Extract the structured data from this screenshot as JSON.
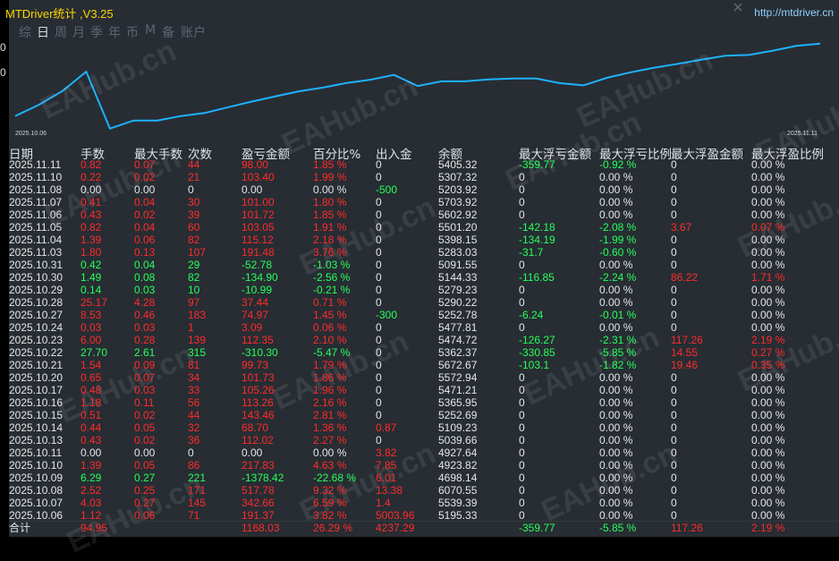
{
  "window": {
    "title": "MTDriver统计 ,V3.25",
    "url": "http://mtdriver.cn"
  },
  "tabs": [
    {
      "label": "综",
      "active": false
    },
    {
      "label": "日",
      "active": true
    },
    {
      "label": "周",
      "active": false
    },
    {
      "label": "月",
      "active": false
    },
    {
      "label": "季",
      "active": false
    },
    {
      "label": "年",
      "active": false
    },
    {
      "label": "币",
      "active": false
    },
    {
      "label": "M",
      "active": false
    },
    {
      "label": "备",
      "active": false
    },
    {
      "label": "账户",
      "active": false
    }
  ],
  "left_axis_ticks": [
    "0",
    "0"
  ],
  "chart_data": {
    "type": "line",
    "x_start_label": "2025.10.06",
    "x_end_label": "2025.11.11",
    "color": "#1eb2ff",
    "points": [
      4400,
      4960,
      5640,
      6600,
      3780,
      4180,
      4180,
      4400,
      4550,
      4840,
      5120,
      5380,
      5630,
      5810,
      6040,
      6200,
      6440,
      5890,
      6120,
      6120,
      6220,
      6260,
      6260,
      6030,
      5920,
      6300,
      6570,
      6800,
      6990,
      7200,
      7390,
      7430,
      7640,
      7880,
      7990
    ]
  },
  "watermark": "EAHub.cn",
  "headers": [
    "日期",
    "手数",
    "最大手数",
    "次数",
    "盈亏金额",
    "百分比%",
    "出入金",
    "余额",
    "最大浮亏金额",
    "最大浮亏比例",
    "最大浮盈金额",
    "最大浮盈比例"
  ],
  "colors": {
    "red": "#ff2b2b",
    "green": "#26ff5c",
    "white": "#e6e6e6",
    "title": "#ffd400"
  },
  "rows": [
    [
      "2025.11.11",
      "0.82",
      "0.07",
      "44",
      "98.00",
      "1.85 %",
      "0",
      "5405.32",
      "-359.77",
      "-0.92 %",
      "0",
      "0.00 %"
    ],
    [
      "2025.11.10",
      "0.22",
      "0.02",
      "21",
      "103.40",
      "1.99 %",
      "0",
      "5307.32",
      "0",
      "0.00 %",
      "0",
      "0.00 %"
    ],
    [
      "2025.11.08",
      "0.00",
      "0.00",
      "0",
      "0.00",
      "0.00 %",
      "-500",
      "5203.92",
      "0",
      "0.00 %",
      "0",
      "0.00 %"
    ],
    [
      "2025.11.07",
      "0.41",
      "0.04",
      "30",
      "101.00",
      "1.80 %",
      "0",
      "5703.92",
      "0",
      "0.00 %",
      "0",
      "0.00 %"
    ],
    [
      "2025.11.06",
      "0.43",
      "0.02",
      "39",
      "101.72",
      "1.85 %",
      "0",
      "5602.92",
      "0",
      "0.00 %",
      "0",
      "0.00 %"
    ],
    [
      "2025.11.05",
      "0.82",
      "0.04",
      "60",
      "103.05",
      "1.91 %",
      "0",
      "5501.20",
      "-142.18",
      "-2.08 %",
      "3.67",
      "0.07 %"
    ],
    [
      "2025.11.04",
      "1.39",
      "0.06",
      "82",
      "115.12",
      "2.18 %",
      "0",
      "5398.15",
      "-134.19",
      "-1.99 %",
      "0",
      "0.00 %"
    ],
    [
      "2025.11.03",
      "1.80",
      "0.13",
      "107",
      "191.48",
      "3.76 %",
      "0",
      "5283.03",
      "-31.7",
      "-0.60 %",
      "0",
      "0.00 %"
    ],
    [
      "2025.10.31",
      "0.42",
      "0.04",
      "29",
      "-52.78",
      "-1.03 %",
      "0",
      "5091.55",
      "0",
      "0.00 %",
      "0",
      "0.00 %"
    ],
    [
      "2025.10.30",
      "1.49",
      "0.08",
      "82",
      "-134.90",
      "-2.56 %",
      "0",
      "5144.33",
      "-116.85",
      "-2.24 %",
      "86.22",
      "1.71 %"
    ],
    [
      "2025.10.29",
      "0.14",
      "0.03",
      "10",
      "-10.99",
      "-0.21 %",
      "0",
      "5279.23",
      "0",
      "0.00 %",
      "0",
      "0.00 %"
    ],
    [
      "2025.10.28",
      "25.17",
      "4.28",
      "97",
      "37.44",
      "0.71 %",
      "0",
      "5290.22",
      "0",
      "0.00 %",
      "0",
      "0.00 %"
    ],
    [
      "2025.10.27",
      "8.53",
      "0.46",
      "183",
      "74.97",
      "1.45 %",
      "-300",
      "5252.78",
      "-6.24",
      "-0.01 %",
      "0",
      "0.00 %"
    ],
    [
      "2025.10.24",
      "0.03",
      "0.03",
      "1",
      "3.09",
      "0.06 %",
      "0",
      "5477.81",
      "0",
      "0.00 %",
      "0",
      "0.00 %"
    ],
    [
      "2025.10.23",
      "6.00",
      "0.28",
      "139",
      "112.35",
      "2.10 %",
      "0",
      "5474.72",
      "-126.27",
      "-2.31 %",
      "117.26",
      "2.19 %"
    ],
    [
      "2025.10.22",
      "27.70",
      "2.61",
      "315",
      "-310.30",
      "-5.47 %",
      "0",
      "5362.37",
      "-330.85",
      "-5.85 %",
      "14.55",
      "0.27 %"
    ],
    [
      "2025.10.21",
      "1.54",
      "0.09",
      "81",
      "99.73",
      "1.79 %",
      "0",
      "5672.67",
      "-103.1",
      "-1.82 %",
      "19.46",
      "0.35 %"
    ],
    [
      "2025.10.20",
      "0.65",
      "0.07",
      "34",
      "101.73",
      "1.86 %",
      "0",
      "5572.94",
      "0",
      "0.00 %",
      "0",
      "0.00 %"
    ],
    [
      "2025.10.17",
      "0.48",
      "0.03",
      "33",
      "105.26",
      "1.96 %",
      "0",
      "5471.21",
      "0",
      "0.00 %",
      "0",
      "0.00 %"
    ],
    [
      "2025.10.16",
      "1.18",
      "0.11",
      "56",
      "113.26",
      "2.16 %",
      "0",
      "5365.95",
      "0",
      "0.00 %",
      "0",
      "0.00 %"
    ],
    [
      "2025.10.15",
      "0.51",
      "0.02",
      "44",
      "143.46",
      "2.81 %",
      "0",
      "5252.69",
      "0",
      "0.00 %",
      "0",
      "0.00 %"
    ],
    [
      "2025.10.14",
      "0.44",
      "0.05",
      "32",
      "68.70",
      "1.36 %",
      "0.87",
      "5109.23",
      "0",
      "0.00 %",
      "0",
      "0.00 %"
    ],
    [
      "2025.10.13",
      "0.43",
      "0.02",
      "36",
      "112.02",
      "2.27 %",
      "0",
      "5039.66",
      "0",
      "0.00 %",
      "0",
      "0.00 %"
    ],
    [
      "2025.10.11",
      "0.00",
      "0.00",
      "0",
      "0.00",
      "0.00 %",
      "3.82",
      "4927.64",
      "0",
      "0.00 %",
      "0",
      "0.00 %"
    ],
    [
      "2025.10.10",
      "1.39",
      "0.05",
      "86",
      "217.83",
      "4.63 %",
      "7.85",
      "4923.82",
      "0",
      "0.00 %",
      "0",
      "0.00 %"
    ],
    [
      "2025.10.09",
      "6.29",
      "0.27",
      "221",
      "-1378.42",
      "-22.68 %",
      "6.01",
      "4698.14",
      "0",
      "0.00 %",
      "0",
      "0.00 %"
    ],
    [
      "2025.10.08",
      "2.52",
      "0.25",
      "171",
      "517.78",
      "9.32 %",
      "13.38",
      "6070.55",
      "0",
      "0.00 %",
      "0",
      "0.00 %"
    ],
    [
      "2025.10.07",
      "4.03",
      "0.27",
      "145",
      "342.66",
      "6.59 %",
      "1.4",
      "5539.39",
      "0",
      "0.00 %",
      "0",
      "0.00 %"
    ],
    [
      "2025.10.06",
      "1.12",
      "0.06",
      "71",
      "191.37",
      "3.82 %",
      "5003.96",
      "5195.33",
      "0",
      "0.00 %",
      "0",
      "0.00 %"
    ]
  ],
  "totals": [
    "合计",
    "94.95",
    "",
    "",
    "1168.03",
    "26.29 %",
    "4237.29",
    "",
    "-359.77",
    "-5.85 %",
    "117.26",
    "2.19 %"
  ]
}
